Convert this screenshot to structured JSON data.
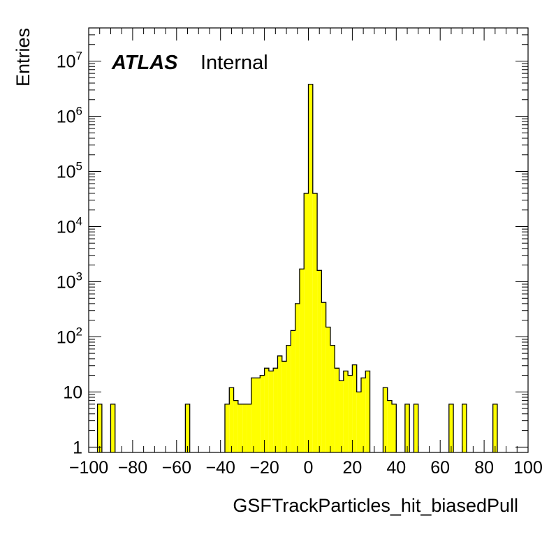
{
  "chart_data": {
    "type": "histogram",
    "xlabel": "GSFTrackParticles_hit_biasedPull",
    "ylabel": "Entries",
    "xlim": [
      -100,
      100
    ],
    "ylim": [
      0.8,
      40000000
    ],
    "y_scale": "log",
    "bin_width": 2,
    "grid": false,
    "fill_color": "#ffff00",
    "line_color": "#000000",
    "label": {
      "experiment": "ATLAS",
      "status": "Internal"
    },
    "x_ticks": [
      -100,
      -80,
      -60,
      -40,
      -20,
      0,
      20,
      40,
      60,
      80,
      100
    ],
    "x_tick_labels": [
      "−100",
      "−80",
      "−60",
      "−40",
      "−20",
      "0",
      "20",
      "40",
      "60",
      "80",
      "100"
    ],
    "y_ticks": [
      1,
      10,
      100,
      1000,
      10000,
      100000,
      1000000,
      10000000
    ],
    "y_tick_labels": [
      {
        "base": "1",
        "exp": ""
      },
      {
        "base": "10",
        "exp": ""
      },
      {
        "base": "10",
        "exp": "2"
      },
      {
        "base": "10",
        "exp": "3"
      },
      {
        "base": "10",
        "exp": "4"
      },
      {
        "base": "10",
        "exp": "5"
      },
      {
        "base": "10",
        "exp": "6"
      },
      {
        "base": "10",
        "exp": "7"
      }
    ],
    "bins": [
      {
        "x": -96,
        "y": 6
      },
      {
        "x": -90,
        "y": 6
      },
      {
        "x": -56,
        "y": 6
      },
      {
        "x": -38,
        "y": 6
      },
      {
        "x": -36,
        "y": 12
      },
      {
        "x": -34,
        "y": 7
      },
      {
        "x": -32,
        "y": 6
      },
      {
        "x": -30,
        "y": 6
      },
      {
        "x": -28,
        "y": 6
      },
      {
        "x": -26,
        "y": 18
      },
      {
        "x": -24,
        "y": 18
      },
      {
        "x": -22,
        "y": 20
      },
      {
        "x": -20,
        "y": 27
      },
      {
        "x": -18,
        "y": 24
      },
      {
        "x": -16,
        "y": 27
      },
      {
        "x": -14,
        "y": 45
      },
      {
        "x": -12,
        "y": 36
      },
      {
        "x": -10,
        "y": 70
      },
      {
        "x": -8,
        "y": 130
      },
      {
        "x": -6,
        "y": 400
      },
      {
        "x": -4,
        "y": 1700
      },
      {
        "x": -2,
        "y": 40000
      },
      {
        "x": 0,
        "y": 3800000
      },
      {
        "x": 2,
        "y": 40000
      },
      {
        "x": 4,
        "y": 1600
      },
      {
        "x": 6,
        "y": 420
      },
      {
        "x": 8,
        "y": 150
      },
      {
        "x": 10,
        "y": 70
      },
      {
        "x": 12,
        "y": 27
      },
      {
        "x": 14,
        "y": 16
      },
      {
        "x": 16,
        "y": 24
      },
      {
        "x": 18,
        "y": 20
      },
      {
        "x": 20,
        "y": 31
      },
      {
        "x": 22,
        "y": 10
      },
      {
        "x": 24,
        "y": 18
      },
      {
        "x": 26,
        "y": 24
      },
      {
        "x": 34,
        "y": 12
      },
      {
        "x": 36,
        "y": 7
      },
      {
        "x": 38,
        "y": 6
      },
      {
        "x": 44,
        "y": 6
      },
      {
        "x": 48,
        "y": 6
      },
      {
        "x": 64,
        "y": 6
      },
      {
        "x": 70,
        "y": 6
      },
      {
        "x": 84,
        "y": 6
      }
    ]
  }
}
